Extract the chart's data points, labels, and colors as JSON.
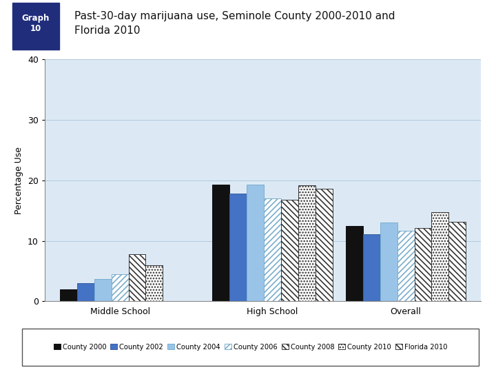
{
  "title": "Past-30-day marijuana use, Seminole County 2000-2010 and\nFlorida 2010",
  "graph_label": "Graph\n10",
  "ylabel": "Percentage Use",
  "ylim": [
    0,
    40
  ],
  "yticks": [
    0,
    10,
    20,
    30,
    40
  ],
  "groups": [
    "Middle School",
    "High School",
    "Overall"
  ],
  "series_labels": [
    "County 2000",
    "County 2002",
    "County 2004",
    "County 2006",
    "County 2008",
    "County 2010",
    "Florida 2010"
  ],
  "values": {
    "Middle School": [
      2.0,
      3.0,
      3.7,
      4.5,
      7.8,
      6.0,
      0
    ],
    "High School": [
      19.3,
      17.8,
      19.3,
      17.0,
      16.8,
      19.2,
      18.6
    ],
    "Overall": [
      12.5,
      11.1,
      13.0,
      11.7,
      12.1,
      14.8,
      13.2
    ]
  },
  "bg_color": "#dce9f5",
  "outer_bg": "#e8f0f8",
  "chart_bg": "#dce9f5",
  "header_bg": "#1f2d7b",
  "header_text": "#ffffff",
  "bar_colors": [
    "#111111",
    "#4472c4",
    "#99c4e8",
    "#ffffff",
    "#ffffff",
    "#ffffff",
    "#ffffff"
  ],
  "bar_edges": [
    "#111111",
    "#3a5fa0",
    "#7aadcc",
    "#7aadcc",
    "#333333",
    "#333333",
    "#333333"
  ],
  "bar_hatches": [
    "",
    "",
    "",
    "////",
    "\\\\\\\\",
    "....",
    "\\\\\\\\"
  ],
  "hatch_colors": [
    "#111111",
    "#111111",
    "#111111",
    "#99c4e8",
    "#333333",
    "#555555",
    "#555555"
  ]
}
